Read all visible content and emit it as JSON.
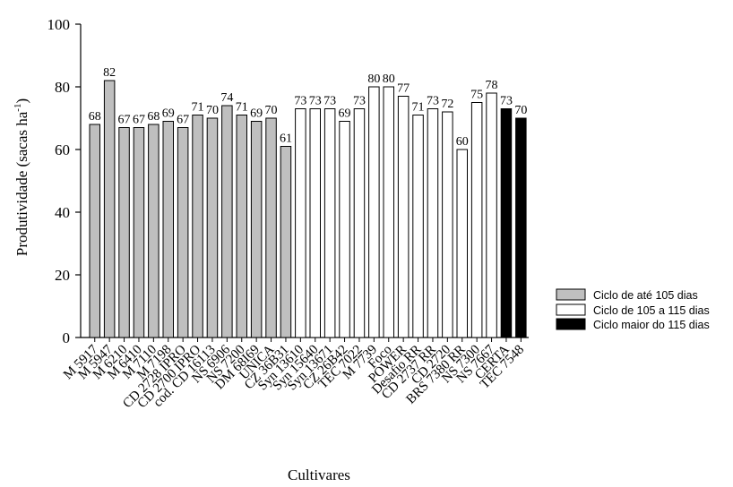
{
  "chart_data": {
    "type": "bar",
    "xlabel": "Cultivares",
    "ylabel": "Produtividade (sacas ha",
    "ylabel_sup": "-1",
    "ylabel_end": ")",
    "ylim": [
      0,
      100
    ],
    "yticks": [
      0,
      20,
      40,
      60,
      80,
      100
    ],
    "grid": false,
    "legend_position": "right-bottom",
    "categories": [
      "M 5917",
      "M 5947",
      "M 6210",
      "M 6410",
      "M 7110",
      "M 7198",
      "CD 2728 IPRO",
      "CD 2700 IPRO",
      "cod. CD 16113",
      "NS 6906",
      "NS 7200",
      "DM 68I69",
      "UNICA",
      "CZ 36B31",
      "Syn 13610",
      "Syn 15640",
      "Syn 13671",
      "CZ 26B42",
      "TEC 7022",
      "M 7739",
      "Foco",
      "POWER",
      "Desafio RR",
      "CD 2737 RR",
      "CD 2720",
      "BRS 7380 RR",
      "NS 7300",
      "NS 7667",
      "CERTA",
      "TEC 7548"
    ],
    "values": [
      68,
      82,
      67,
      67,
      68,
      69,
      67,
      71,
      70,
      74,
      71,
      69,
      70,
      61,
      73,
      73,
      73,
      69,
      73,
      80,
      80,
      77,
      71,
      73,
      72,
      60,
      75,
      78,
      73,
      70
    ],
    "groups": [
      0,
      0,
      0,
      0,
      0,
      0,
      0,
      0,
      0,
      0,
      0,
      0,
      0,
      0,
      1,
      1,
      1,
      1,
      1,
      1,
      1,
      1,
      1,
      1,
      1,
      1,
      1,
      1,
      2,
      2
    ],
    "series": [
      {
        "name": "Ciclo de até 105 dias",
        "color": "#bfbfbf"
      },
      {
        "name": "Ciclo de 105 a 115 dias",
        "color": "#ffffff"
      },
      {
        "name": "Ciclo maior do 115 dias",
        "color": "#000000"
      }
    ]
  }
}
